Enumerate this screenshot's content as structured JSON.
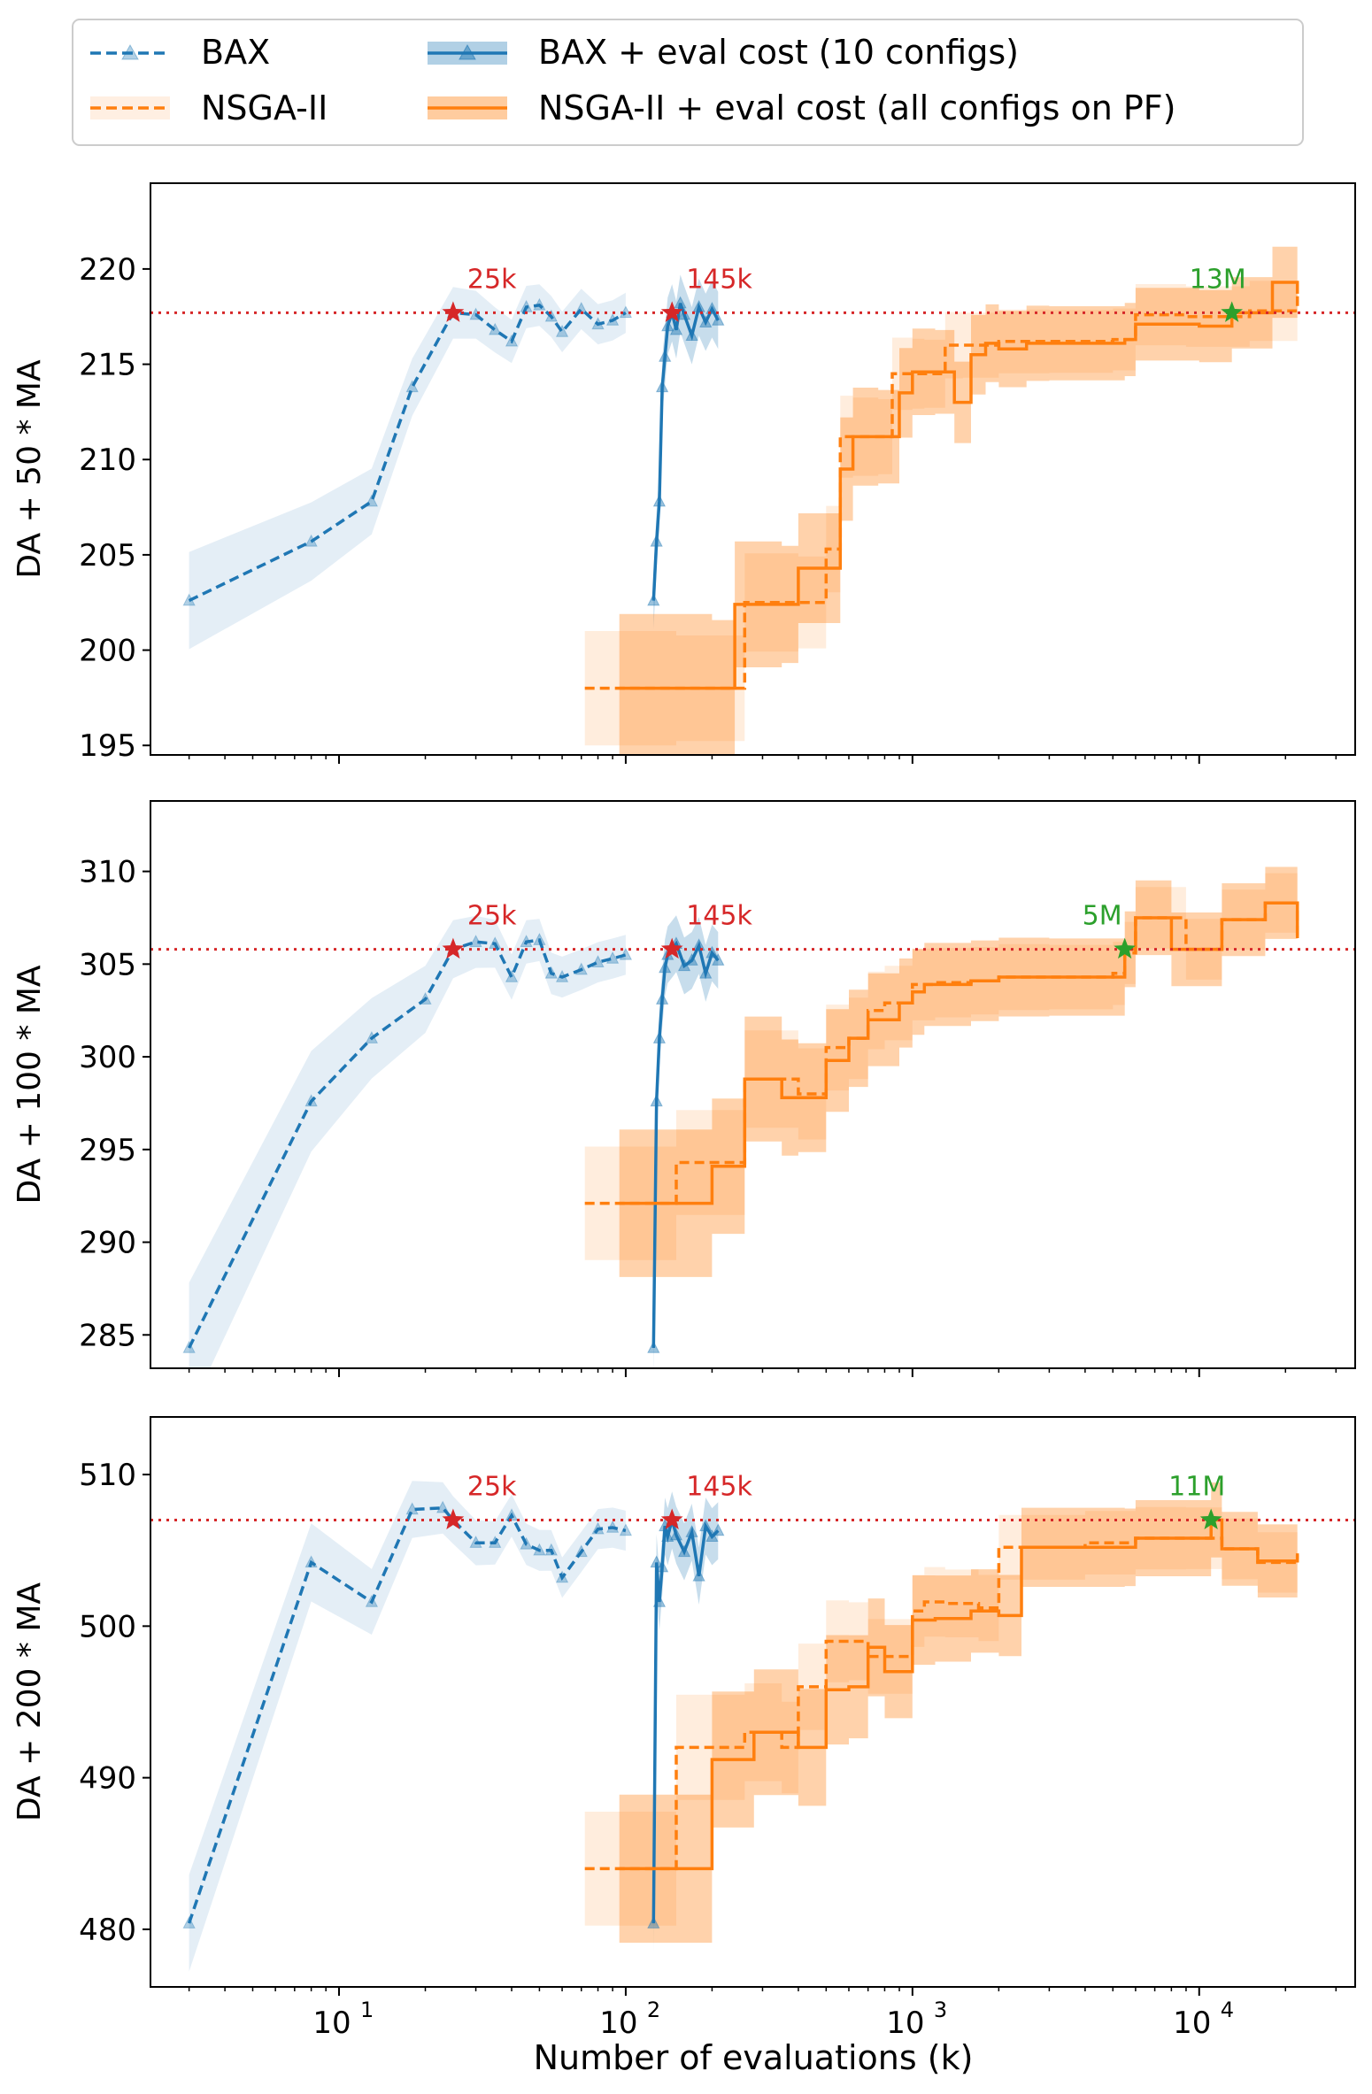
{
  "legend": {
    "entries": [
      {
        "label": "BAX",
        "color": "#1f77b4",
        "style": "dashed-triangle"
      },
      {
        "label": "NSGA-II",
        "color": "#ff7f0e",
        "style": "dashed"
      },
      {
        "label": "BAX + eval cost (10 configs)",
        "color": "#1f77b4",
        "style": "solid-triangle-band"
      },
      {
        "label": "NSGA-II + eval cost (all configs on PF)",
        "color": "#ff7f0e",
        "style": "solid-band"
      }
    ]
  },
  "colors": {
    "bax": "#1f77b4",
    "nsga": "#ff7f0e",
    "reference": "#d62728",
    "star_green": "#2ca02c"
  },
  "xlabel": "Number of evaluations (k)",
  "xticks": [
    {
      "value": 10,
      "base": "10",
      "exp": "1"
    },
    {
      "value": 100,
      "base": "10",
      "exp": "2"
    },
    {
      "value": 1000,
      "base": "10",
      "exp": "3"
    },
    {
      "value": 10000,
      "base": "10",
      "exp": "4"
    }
  ],
  "chart_data": [
    {
      "type": "line",
      "ylabel": "DA + 50 * MA",
      "xscale": "log",
      "xlim": [
        2.2,
        35000
      ],
      "ylim": [
        194.5,
        224.5
      ],
      "yticks": [
        195,
        200,
        205,
        210,
        215,
        220
      ],
      "reference_y": 217.7,
      "annotations": [
        {
          "text": "25k",
          "x": 25,
          "y": 217.7,
          "color": "red"
        },
        {
          "text": "145k",
          "x": 145,
          "y": 217.7,
          "color": "red"
        },
        {
          "text": "13M",
          "x": 13000,
          "y": 217.7,
          "color": "green"
        }
      ],
      "series": [
        {
          "name": "BAX",
          "x": [
            3,
            8,
            13,
            18,
            25,
            30,
            35,
            40,
            45,
            50,
            55,
            60,
            70,
            80,
            90,
            100
          ],
          "y": [
            202.6,
            205.7,
            207.8,
            213.8,
            217.7,
            217.6,
            216.8,
            216.2,
            218.0,
            218.1,
            217.5,
            216.7,
            217.9,
            217.1,
            217.3,
            217.7
          ]
        },
        {
          "name": "BAX + eval cost (10 configs)",
          "x": [
            125,
            128,
            131,
            134,
            137,
            140,
            145,
            150,
            155,
            160,
            170,
            180,
            190,
            200,
            210
          ],
          "y": [
            202.6,
            205.7,
            207.8,
            213.8,
            215.4,
            217.0,
            217.7,
            216.8,
            218.2,
            217.6,
            216.5,
            218.0,
            217.2,
            217.9,
            217.3
          ]
        },
        {
          "name": "NSGA-II",
          "x": [
            72,
            150,
            260,
            400,
            500,
            560,
            620,
            760,
            850,
            1000,
            1100,
            1300,
            1500,
            2000,
            3000,
            5000,
            6000,
            9000,
            15000,
            22000
          ],
          "y": [
            198.0,
            198.0,
            202.5,
            202.5,
            205.3,
            211.2,
            211.2,
            211.2,
            214.5,
            214.5,
            214.5,
            216.0,
            216.0,
            216.2,
            216.2,
            216.3,
            217.6,
            217.5,
            217.8,
            218.6
          ]
        },
        {
          "name": "NSGA-II + eval cost (all configs on PF)",
          "x": [
            95,
            200,
            240,
            350,
            400,
            560,
            620,
            760,
            900,
            1000,
            1200,
            1400,
            1600,
            1800,
            2000,
            2500,
            3000,
            5500,
            6000,
            10000,
            13000,
            18000,
            22000
          ],
          "y": [
            198.0,
            198.0,
            202.4,
            202.4,
            204.3,
            209.5,
            211.2,
            211.2,
            213.5,
            214.6,
            214.6,
            213.0,
            215.5,
            216.1,
            215.8,
            216.1,
            216.1,
            216.3,
            217.1,
            217.0,
            217.7,
            219.3,
            218.7
          ]
        }
      ]
    },
    {
      "type": "line",
      "ylabel": "DA + 100 * MA",
      "xscale": "log",
      "xlim": [
        2.2,
        35000
      ],
      "ylim": [
        283.2,
        313.8
      ],
      "yticks": [
        285,
        290,
        295,
        300,
        305,
        310
      ],
      "reference_y": 305.8,
      "annotations": [
        {
          "text": "25k",
          "x": 25,
          "y": 305.8,
          "color": "red"
        },
        {
          "text": "145k",
          "x": 145,
          "y": 305.8,
          "color": "red"
        },
        {
          "text": "5M",
          "x": 5500,
          "y": 305.8,
          "color": "green"
        }
      ],
      "series": [
        {
          "name": "BAX",
          "x": [
            3,
            8,
            13,
            20,
            25,
            30,
            35,
            40,
            45,
            50,
            55,
            60,
            70,
            80,
            90,
            100
          ],
          "y": [
            284.3,
            297.6,
            301.0,
            303.1,
            305.8,
            306.2,
            306.1,
            304.3,
            306.2,
            306.3,
            304.5,
            304.3,
            304.7,
            305.1,
            305.3,
            305.5
          ]
        },
        {
          "name": "BAX + eval cost (10 configs)",
          "x": [
            125,
            128,
            131,
            134,
            137,
            140,
            145,
            150,
            160,
            170,
            180,
            190,
            200,
            210
          ],
          "y": [
            284.3,
            297.6,
            301.0,
            303.1,
            304.8,
            305.5,
            305.8,
            306.1,
            304.9,
            305.2,
            306.0,
            304.5,
            305.6,
            305.2
          ]
        },
        {
          "name": "NSGA-II",
          "x": [
            72,
            150,
            260,
            400,
            500,
            600,
            700,
            800,
            1000,
            1200,
            1600,
            2000,
            3000,
            5000,
            5500,
            6000,
            9000,
            12000,
            17000,
            22000
          ],
          "y": [
            292.1,
            294.3,
            298.8,
            298.0,
            300.5,
            301.0,
            302.5,
            302.9,
            303.9,
            304.0,
            304.1,
            304.3,
            304.3,
            304.5,
            305.6,
            307.5,
            305.8,
            307.4,
            308.3,
            306.4
          ]
        },
        {
          "name": "NSGA-II + eval cost (all configs on PF)",
          "x": [
            95,
            200,
            260,
            350,
            400,
            500,
            600,
            700,
            900,
            1000,
            1100,
            1600,
            2000,
            3000,
            5500,
            6000,
            8000,
            12000,
            17000,
            22000
          ],
          "y": [
            292.1,
            294.1,
            298.8,
            297.8,
            297.8,
            299.8,
            301.0,
            302.0,
            302.9,
            303.5,
            303.9,
            304.1,
            304.3,
            304.3,
            305.8,
            307.5,
            305.8,
            307.4,
            308.3,
            306.4
          ]
        }
      ]
    },
    {
      "type": "line",
      "ylabel": "DA + 200 * MA",
      "xscale": "log",
      "xlim": [
        2.2,
        35000
      ],
      "ylim": [
        476.2,
        513.8
      ],
      "yticks": [
        480,
        490,
        500,
        510
      ],
      "reference_y": 507.0,
      "annotations": [
        {
          "text": "25k",
          "x": 25,
          "y": 507.0,
          "color": "red"
        },
        {
          "text": "145k",
          "x": 145,
          "y": 507.0,
          "color": "red"
        },
        {
          "text": "11M",
          "x": 11000,
          "y": 507.0,
          "color": "green"
        }
      ],
      "series": [
        {
          "name": "BAX",
          "x": [
            3,
            8,
            13,
            18,
            23,
            25,
            30,
            35,
            40,
            45,
            50,
            55,
            60,
            70,
            80,
            90,
            100
          ],
          "y": [
            480.4,
            504.2,
            501.6,
            507.7,
            507.8,
            507.0,
            505.5,
            505.5,
            507.3,
            505.4,
            505.0,
            505.0,
            503.2,
            504.9,
            506.4,
            506.5,
            506.3
          ]
        },
        {
          "name": "BAX + eval cost (10 configs)",
          "x": [
            125,
            128,
            131,
            134,
            137,
            140,
            145,
            150,
            160,
            170,
            180,
            190,
            200,
            210
          ],
          "y": [
            480.4,
            504.2,
            501.6,
            503.9,
            506.6,
            505.9,
            507.0,
            506.0,
            504.9,
            506.2,
            503.3,
            506.6,
            505.9,
            506.3
          ]
        },
        {
          "name": "NSGA-II",
          "x": [
            72,
            150,
            260,
            350,
            400,
            500,
            600,
            700,
            1000,
            1100,
            1300,
            1700,
            2000,
            4000,
            6000,
            9000,
            12000,
            16000,
            22000
          ],
          "y": [
            484.0,
            492.0,
            493.0,
            492.0,
            496.0,
            499.0,
            499.0,
            498.0,
            501.0,
            501.6,
            501.5,
            501.2,
            505.2,
            505.5,
            505.8,
            505.8,
            505.1,
            504.2,
            504.7
          ]
        },
        {
          "name": "NSGA-II + eval cost (all configs on PF)",
          "x": [
            95,
            200,
            280,
            400,
            500,
            600,
            700,
            800,
            1000,
            1200,
            1600,
            2000,
            2400,
            5500,
            6000,
            11000,
            12000,
            16000,
            22000
          ],
          "y": [
            484.0,
            491.2,
            493.0,
            492.0,
            495.8,
            496.0,
            498.6,
            497.0,
            500.4,
            500.5,
            501.0,
            500.7,
            505.2,
            505.2,
            505.8,
            507.0,
            505.1,
            504.3,
            504.8
          ]
        }
      ]
    }
  ]
}
